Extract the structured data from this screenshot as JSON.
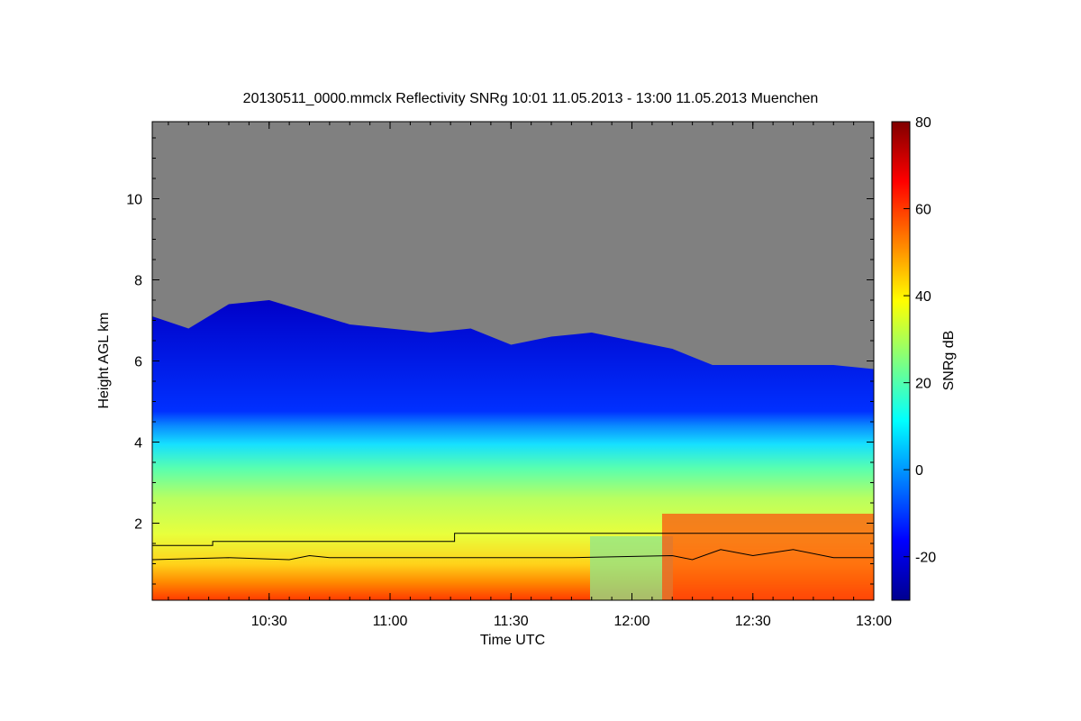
{
  "chart_data": {
    "type": "heatmap",
    "title": "20130511_0000.mmclx Reflectivity SNRg   10:01 11.05.2013 - 13:00 11.05.2013 Muenchen",
    "xlabel": "Time UTC",
    "ylabel": "Height AGL km",
    "xlim": [
      "10:01",
      "13:00"
    ],
    "ylim": [
      0.1,
      11.9
    ],
    "x_ticks": [
      "10:30",
      "11:00",
      "11:30",
      "12:00",
      "12:30",
      "13:00"
    ],
    "y_ticks": [
      "2",
      "4",
      "6",
      "8",
      "10"
    ],
    "colorbar": {
      "label": "SNRg dB",
      "range": [
        -30,
        80
      ],
      "ticks": [
        "-20",
        "0",
        "20",
        "40",
        "60",
        "80"
      ]
    },
    "no_signal_color": "#808080",
    "cloud_top_km": [
      {
        "t": "10:01",
        "h": 7.1
      },
      {
        "t": "10:10",
        "h": 6.8
      },
      {
        "t": "10:20",
        "h": 7.4
      },
      {
        "t": "10:30",
        "h": 7.5
      },
      {
        "t": "10:40",
        "h": 7.2
      },
      {
        "t": "10:50",
        "h": 6.9
      },
      {
        "t": "11:00",
        "h": 6.8
      },
      {
        "t": "11:10",
        "h": 6.7
      },
      {
        "t": "11:20",
        "h": 6.8
      },
      {
        "t": "11:30",
        "h": 6.4
      },
      {
        "t": "11:40",
        "h": 6.6
      },
      {
        "t": "11:50",
        "h": 6.7
      },
      {
        "t": "12:00",
        "h": 6.5
      },
      {
        "t": "12:10",
        "h": 6.3
      },
      {
        "t": "12:20",
        "h": 5.9
      },
      {
        "t": "12:30",
        "h": 5.9
      },
      {
        "t": "12:40",
        "h": 5.9
      },
      {
        "t": "12:50",
        "h": 5.9
      },
      {
        "t": "13:00",
        "h": 5.8
      }
    ],
    "upper_line_km": [
      {
        "t": "10:01",
        "h": 1.45
      },
      {
        "t": "10:16",
        "h": 1.45
      },
      {
        "t": "10:16",
        "h": 1.55
      },
      {
        "t": "11:16",
        "h": 1.55
      },
      {
        "t": "11:16",
        "h": 1.75
      },
      {
        "t": "13:00",
        "h": 1.75
      }
    ],
    "lower_line_km": [
      {
        "t": "10:01",
        "h": 1.1
      },
      {
        "t": "10:20",
        "h": 1.15
      },
      {
        "t": "10:35",
        "h": 1.1
      },
      {
        "t": "10:40",
        "h": 1.2
      },
      {
        "t": "10:45",
        "h": 1.15
      },
      {
        "t": "11:15",
        "h": 1.15
      },
      {
        "t": "11:45",
        "h": 1.15
      },
      {
        "t": "12:10",
        "h": 1.2
      },
      {
        "t": "12:15",
        "h": 1.1
      },
      {
        "t": "12:22",
        "h": 1.35
      },
      {
        "t": "12:30",
        "h": 1.2
      },
      {
        "t": "12:40",
        "h": 1.35
      },
      {
        "t": "12:50",
        "h": 1.15
      },
      {
        "t": "13:00",
        "h": 1.15
      }
    ]
  }
}
